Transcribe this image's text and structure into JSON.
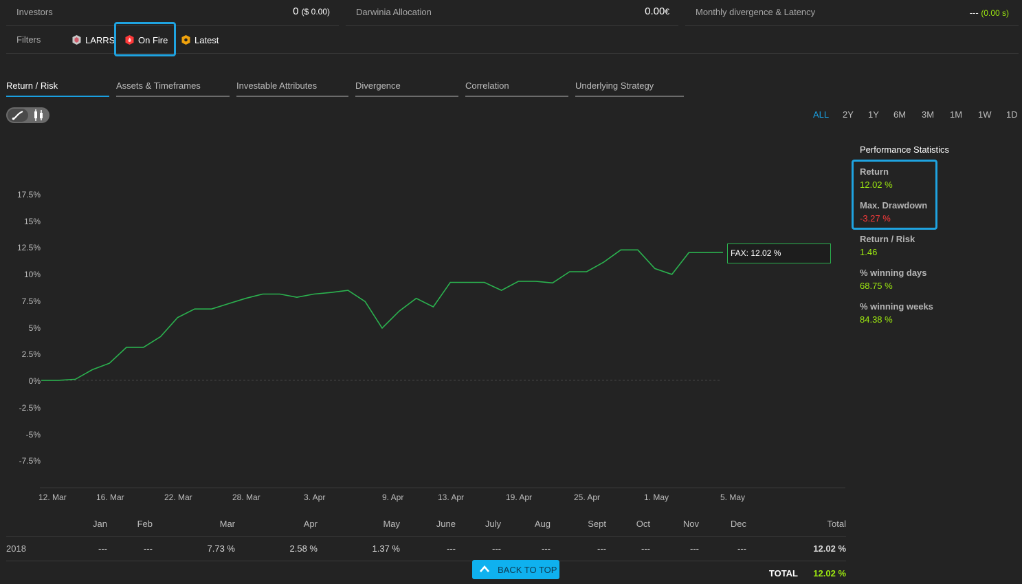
{
  "stats": {
    "investors_label": "Investors",
    "investors_value": "0",
    "investors_sub": "($ 0.00)",
    "allocation_label": "Darwinia Allocation",
    "allocation_value": "0.00",
    "allocation_sub": "€",
    "divergence_label": "Monthly divergence & Latency",
    "divergence_value": "---",
    "divergence_sub": "(0.00 s)"
  },
  "filters": {
    "label": "Filters",
    "items": [
      {
        "label": "LARRS",
        "icon": "larrs-shield-icon",
        "color": "#c7c7c7"
      },
      {
        "label": "On Fire",
        "icon": "fire-badge-icon",
        "color": "#ff3a3a"
      },
      {
        "label": "Latest",
        "icon": "latest-hex-icon",
        "color": "#f0a20c"
      }
    ]
  },
  "tabs": [
    "Return / Risk",
    "Assets & Timeframes",
    "Investable Attributes",
    "Divergence",
    "Correlation",
    "Underlying Strategy"
  ],
  "ranges": [
    "ALL",
    "2Y",
    "1Y",
    "6M",
    "3M",
    "1M",
    "1W",
    "1D"
  ],
  "performance": {
    "title": "Performance Statistics",
    "items": [
      {
        "label": "Return",
        "value": "12.02 %",
        "tone": "green"
      },
      {
        "label": "Max. Drawdown",
        "value": "-3.27 %",
        "tone": "red"
      },
      {
        "label": "Return / Risk",
        "value": "1.46",
        "tone": "green"
      },
      {
        "label": "% winning days",
        "value": "68.75 %",
        "tone": "green"
      },
      {
        "label": "% winning weeks",
        "value": "84.38 %",
        "tone": "green"
      }
    ]
  },
  "chart_data": {
    "type": "line",
    "series": [
      {
        "name": "FAX",
        "color": "#2bb34f",
        "values": [
          0.0,
          0.0,
          0.1,
          1.0,
          1.6,
          3.1,
          3.1,
          4.1,
          5.9,
          6.7,
          6.7,
          7.2,
          7.7,
          8.1,
          8.1,
          7.8,
          8.1,
          8.25,
          8.45,
          7.4,
          4.9,
          6.5,
          7.7,
          6.9,
          9.2,
          9.2,
          9.2,
          8.45,
          9.3,
          9.3,
          9.15,
          10.2,
          10.2,
          11.1,
          12.25,
          12.25,
          10.5,
          9.95,
          12.0,
          12.0,
          12.02
        ]
      }
    ],
    "tooltip": "FAX: 12.02 %",
    "y_ticks": [
      "17.5%",
      "15%",
      "12.5%",
      "10%",
      "7.5%",
      "5%",
      "2.5%",
      "0%",
      "-2.5%",
      "-5%",
      "-7.5%"
    ],
    "x_ticks": [
      "12. Mar",
      "16. Mar",
      "22. Mar",
      "28. Mar",
      "3. Apr",
      "9. Apr",
      "13. Apr",
      "19. Apr",
      "25. Apr",
      "1. May",
      "5. May"
    ],
    "ylim": [
      -7.5,
      17.5
    ]
  },
  "monthly": {
    "headers": [
      "Jan",
      "Feb",
      "Mar",
      "Apr",
      "May",
      "June",
      "July",
      "Aug",
      "Sept",
      "Oct",
      "Nov",
      "Dec",
      "Total"
    ],
    "rows": [
      {
        "year": "2018",
        "values": [
          "---",
          "---",
          "7.73 %",
          "2.58 %",
          "1.37 %",
          "---",
          "---",
          "---",
          "---",
          "---",
          "---",
          "---",
          "12.02 %"
        ]
      }
    ],
    "total_label": "TOTAL",
    "total_value": "12.02 %"
  },
  "back_to_top": "BACK TO TOP"
}
